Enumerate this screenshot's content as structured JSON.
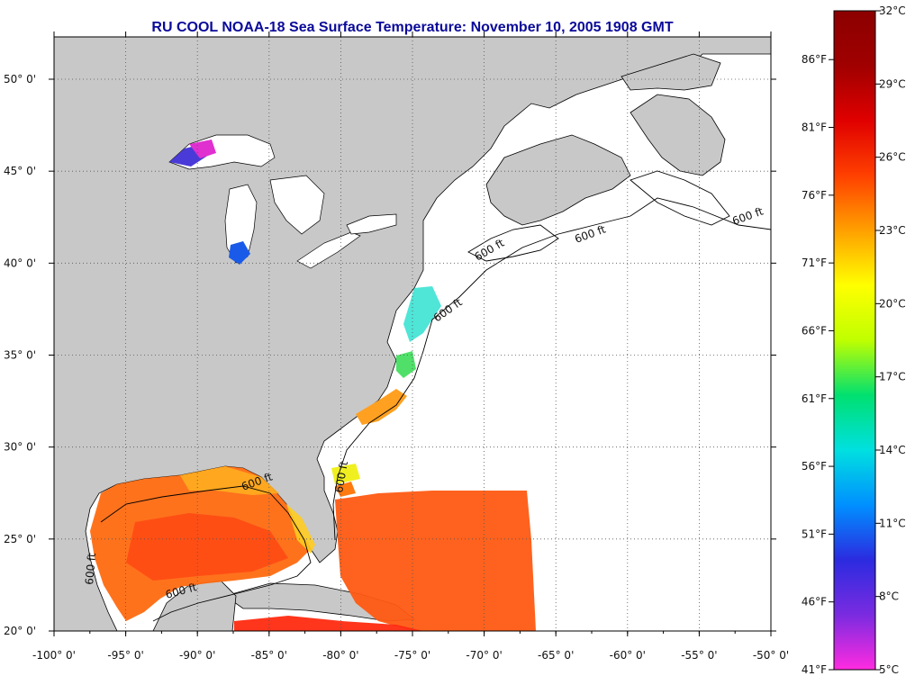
{
  "title": "RU COOL  NOAA-18  Sea Surface Temperature:  November 10, 2005 1908 GMT",
  "map": {
    "lon_labels": [
      "-100° 0'",
      "-95° 0'",
      "-90° 0'",
      "-85° 0'",
      "-80° 0'",
      "-75° 0'",
      "-70° 0'",
      "-65° 0'",
      "-60° 0'",
      "-55° 0'",
      "-50° 0'"
    ],
    "lon_values": [
      -100,
      -95,
      -90,
      -85,
      -80,
      -75,
      -70,
      -65,
      -60,
      -55,
      -50
    ],
    "lat_labels": [
      "20° 0'",
      "25° 0'",
      "30° 0'",
      "35° 0'",
      "40° 0'",
      "45° 0'",
      "50° 0'"
    ],
    "lat_values": [
      20,
      25,
      30,
      35,
      40,
      45,
      50
    ],
    "lon_range": [
      -100,
      -50
    ],
    "lat_range": [
      20,
      52.3
    ],
    "grid": "dotted",
    "isobath_label": "600 ft",
    "land_color": "#c8c8c8",
    "cloud_color": "#ffffff"
  },
  "colorbar": {
    "celsius_labels": [
      "32°C",
      "29°C",
      "26°C",
      "23°C",
      "20°C",
      "17°C",
      "14°C",
      "11°C",
      "8°C",
      "5°C"
    ],
    "celsius_values": [
      32,
      29,
      26,
      23,
      20,
      17,
      14,
      11,
      8,
      5
    ],
    "fahrenheit_labels": [
      "86°F",
      "81°F",
      "76°F",
      "71°F",
      "66°F",
      "61°F",
      "56°F",
      "51°F",
      "46°F",
      "41°F"
    ],
    "fahrenheit_values": [
      86,
      81,
      76,
      71,
      66,
      61,
      56,
      51,
      46,
      41
    ],
    "range_c": [
      5,
      32
    ],
    "colors": [
      "#ff2be0",
      "#7a2be0",
      "#2b2be0",
      "#0090ff",
      "#00e0e0",
      "#00e070",
      "#c0ff00",
      "#ffff00",
      "#ffa000",
      "#ff4000",
      "#e00000",
      "#a00000",
      "#8c0000"
    ]
  }
}
